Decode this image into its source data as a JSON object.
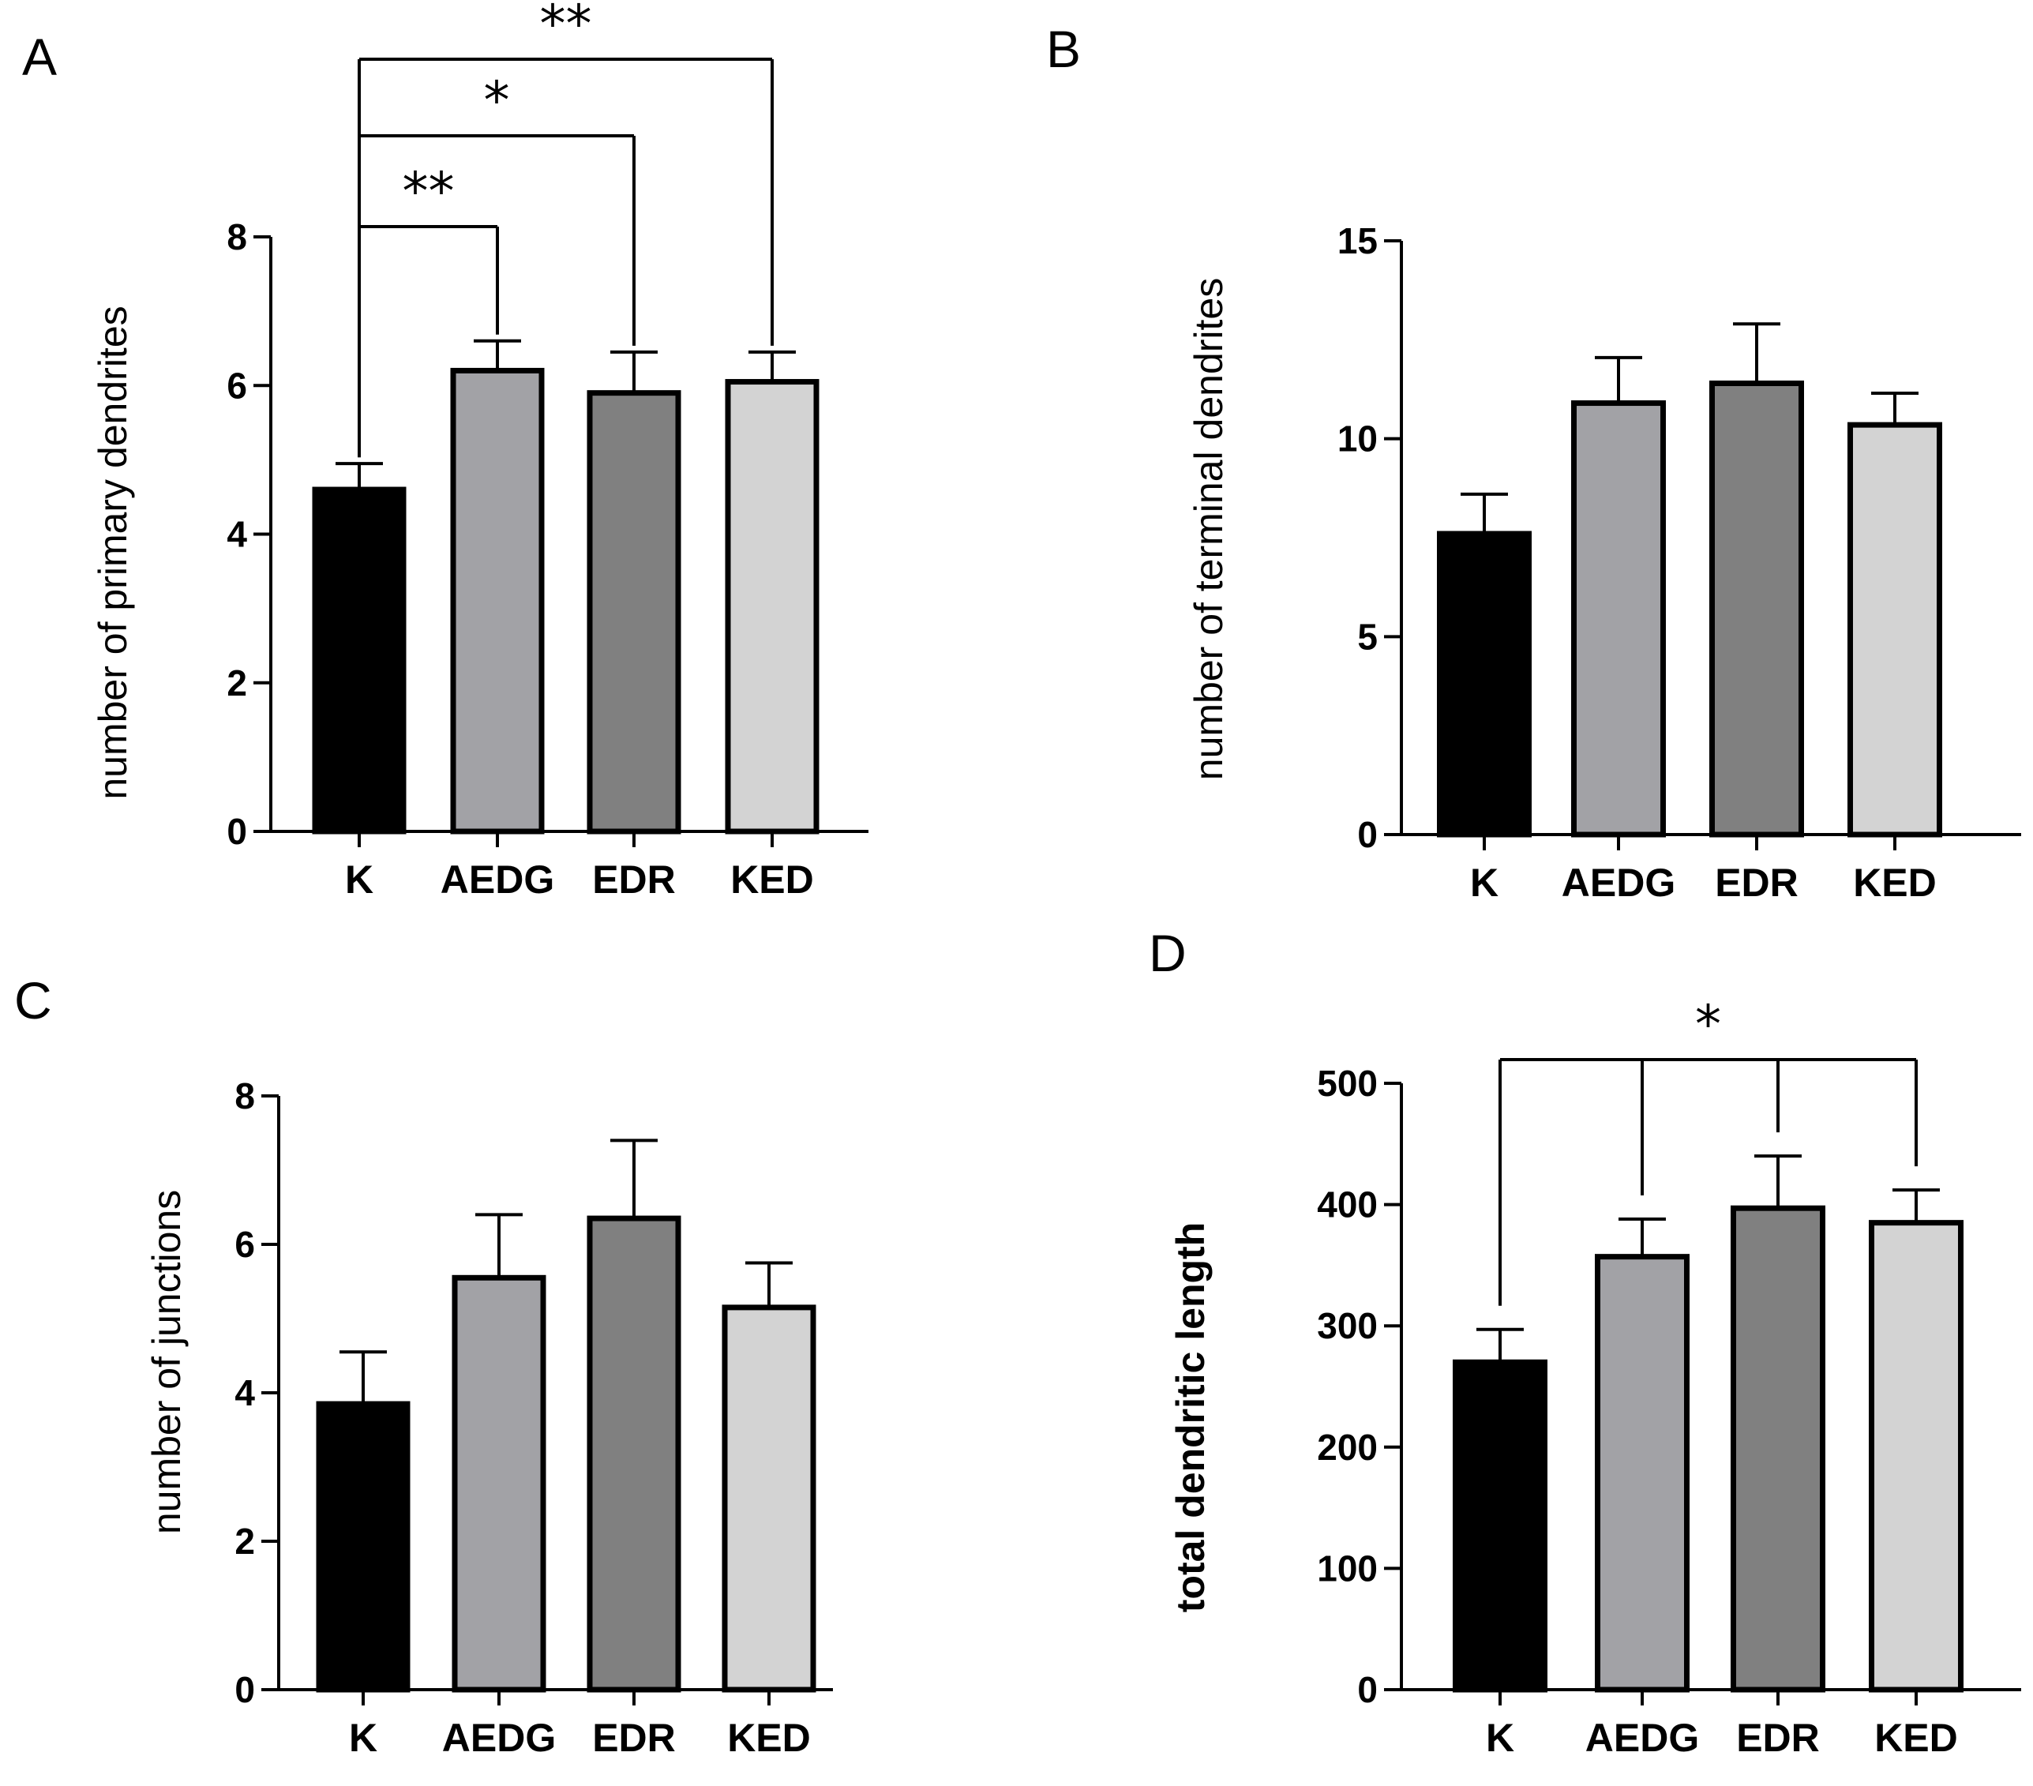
{
  "chart_data": [
    {
      "panel": "A",
      "type": "bar",
      "categories": [
        "K",
        "AEDG",
        "EDR",
        "KED"
      ],
      "values": [
        4.6,
        6.2,
        5.9,
        6.05
      ],
      "errors": [
        0.35,
        0.4,
        0.55,
        0.4
      ],
      "colors": [
        "#000000",
        "#a2a2a6",
        "#808080",
        "#d3d3d3"
      ],
      "ylabel": "number of primary dendrites",
      "ylim": [
        0,
        8
      ],
      "yticks": [
        "0",
        "2",
        "4",
        "6",
        "8"
      ],
      "significance": [
        {
          "from": "K",
          "to": "AEDG",
          "label": "**"
        },
        {
          "from": "K",
          "to": "EDR",
          "label": "*"
        },
        {
          "from": "K",
          "to": "KED",
          "label": "**"
        }
      ]
    },
    {
      "panel": "B",
      "type": "bar",
      "categories": [
        "K",
        "AEDG",
        "EDR",
        "KED"
      ],
      "values": [
        7.6,
        10.9,
        11.4,
        10.35
      ],
      "errors": [
        1.0,
        1.15,
        1.5,
        0.8
      ],
      "colors": [
        "#000000",
        "#a2a2a6",
        "#808080",
        "#d3d3d3"
      ],
      "ylabel": "number of terminal dendrites",
      "ylim": [
        0,
        15
      ],
      "yticks": [
        "0",
        "5",
        "10",
        "15"
      ],
      "significance": []
    },
    {
      "panel": "C",
      "type": "bar",
      "categories": [
        "K",
        "AEDG",
        "EDR",
        "KED"
      ],
      "values": [
        3.85,
        5.55,
        6.35,
        5.15
      ],
      "errors": [
        0.7,
        0.85,
        1.05,
        0.6
      ],
      "colors": [
        "#000000",
        "#a2a2a6",
        "#808080",
        "#d3d3d3"
      ],
      "ylabel": "number of junctions",
      "ylim": [
        0,
        8
      ],
      "yticks": [
        "0",
        "2",
        "4",
        "6",
        "8"
      ],
      "significance": []
    },
    {
      "panel": "D",
      "type": "bar",
      "categories": [
        "K",
        "AEDG",
        "EDR",
        "KED"
      ],
      "values": [
        270,
        357,
        397,
        385
      ],
      "errors": [
        27,
        31,
        43,
        27
      ],
      "colors": [
        "#000000",
        "#a2a2a6",
        "#808080",
        "#d3d3d3"
      ],
      "ylabel": "total dendritic length",
      "ylim": [
        0,
        500
      ],
      "yticks": [
        "0",
        "100",
        "200",
        "300",
        "400",
        "500"
      ],
      "significance": [
        {
          "from": "K",
          "to": [
            "AEDG",
            "EDR",
            "KED"
          ],
          "label": "*"
        }
      ]
    }
  ]
}
